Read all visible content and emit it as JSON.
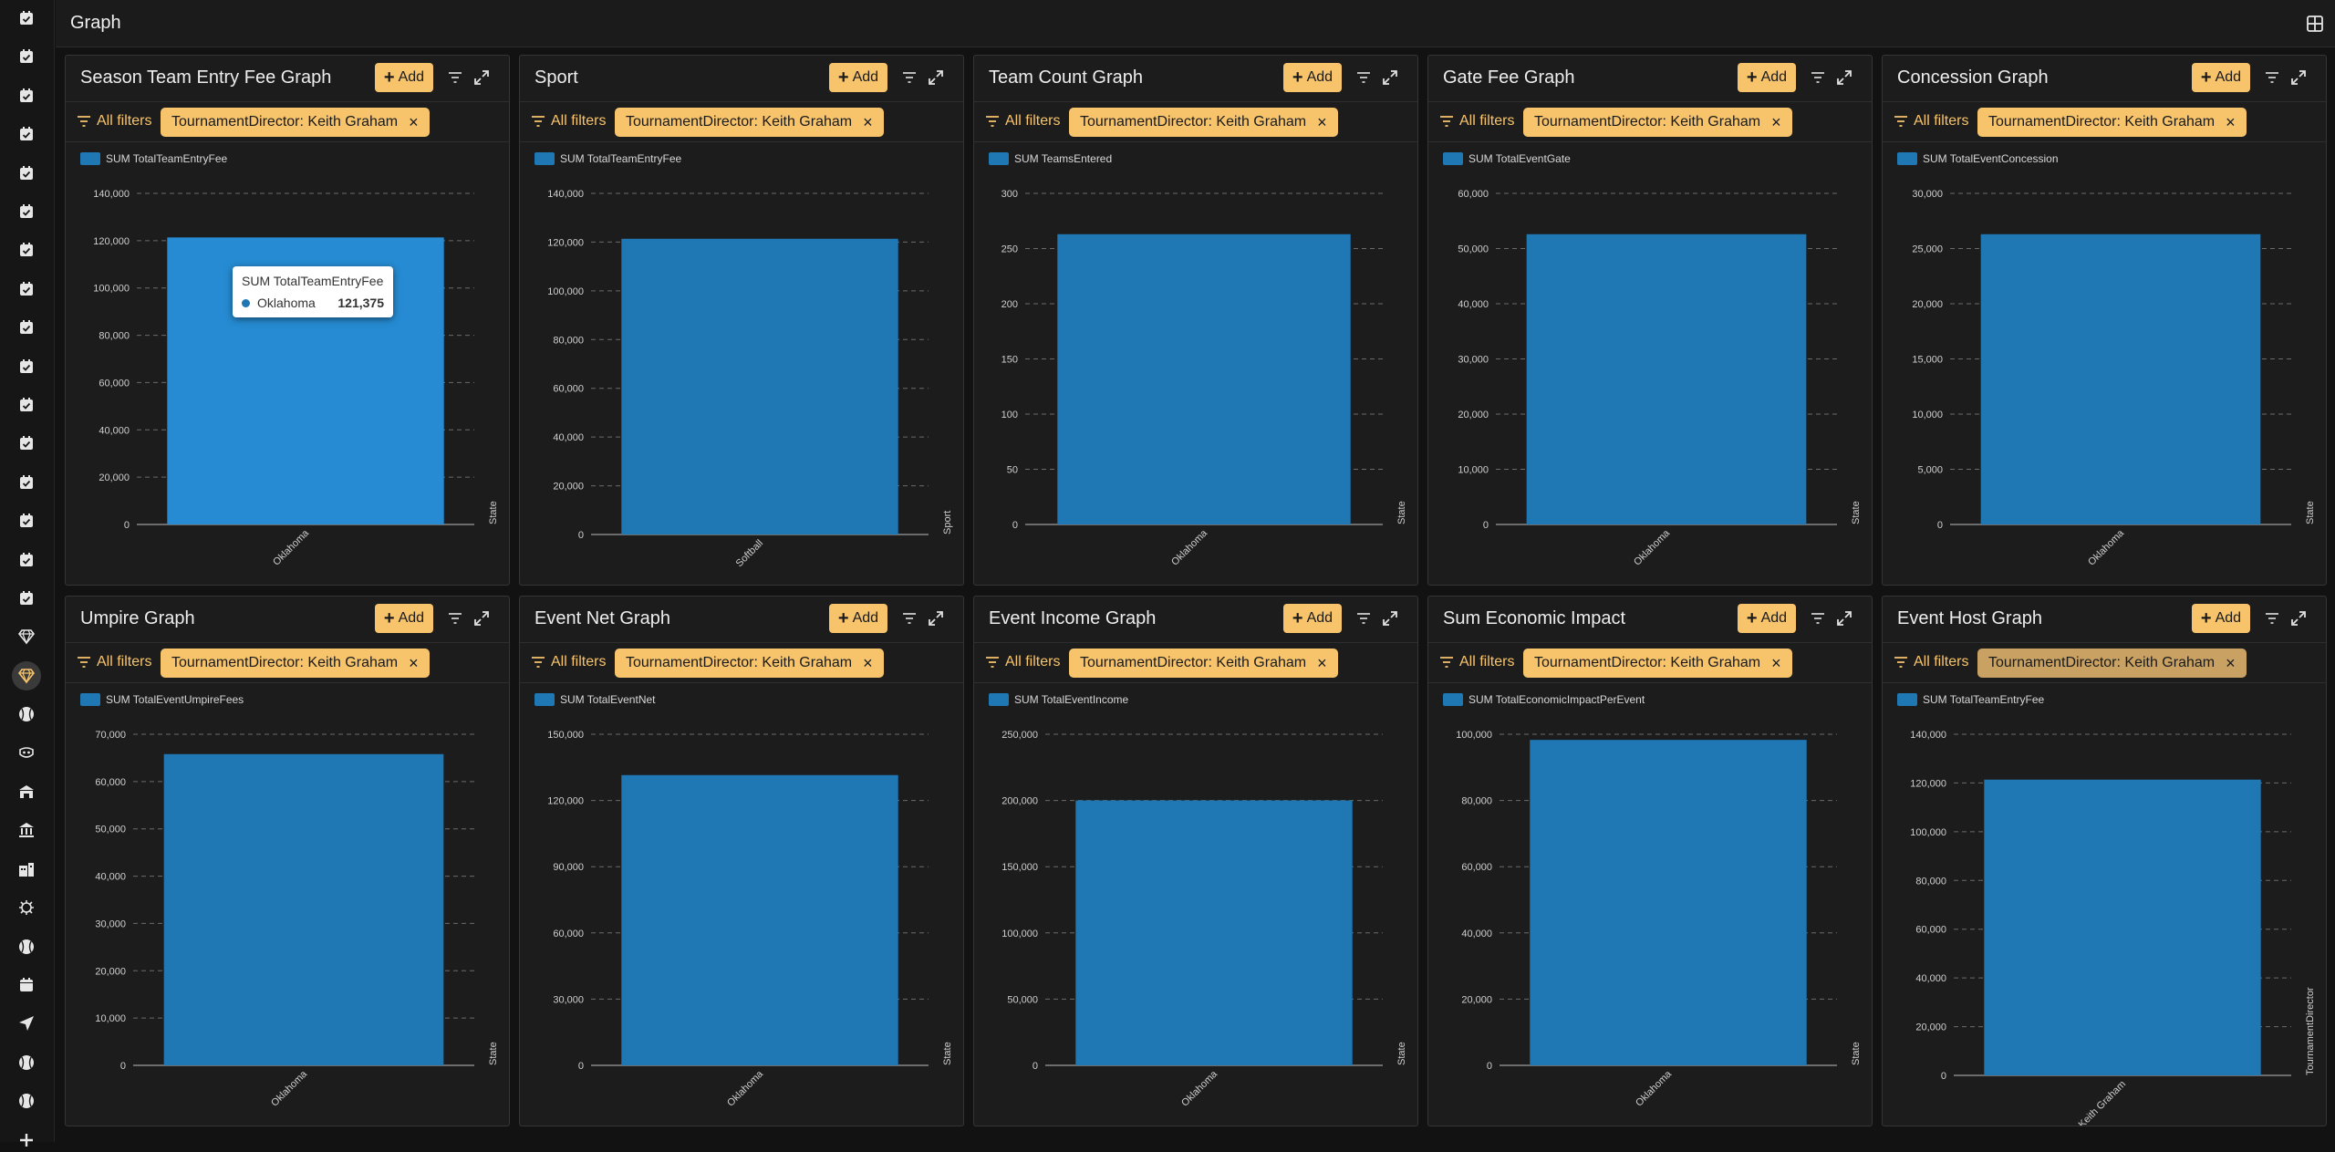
{
  "header": {
    "title": "Graph"
  },
  "sidebar": {
    "icons": [
      "calendar-check-icon",
      "calendar-check-icon",
      "calendar-check-icon",
      "calendar-check-icon",
      "calendar-check-icon",
      "calendar-check-icon",
      "calendar-check-icon",
      "calendar-check-icon",
      "calendar-check-icon",
      "calendar-check-icon",
      "calendar-check-icon",
      "calendar-check-icon",
      "calendar-check-icon",
      "calendar-check-icon",
      "calendar-check-icon",
      "calendar-check-icon",
      "diamond-icon",
      "diamond-icon",
      "ball-icon",
      "mask-icon",
      "building-icon",
      "bank-icon",
      "hospital-icon",
      "virus-icon",
      "ball-icon",
      "calendar-icon",
      "send-icon",
      "ball-icon",
      "ball-icon",
      "plus-icon"
    ],
    "active_index": 17
  },
  "common": {
    "add_label": "Add",
    "all_filters_label": "All filters"
  },
  "colors": {
    "accent": "#f7c46c",
    "bar": "#1f77b4",
    "bar_highlight": "#268bd2"
  },
  "panels": [
    {
      "title": "Season Team Entry Fee Graph",
      "filter_chip": "TournamentDirector: Keith Graham",
      "chart_data": {
        "type": "bar",
        "series": [
          {
            "name": "SUM TotalTeamEntryFee",
            "values": [
              121375
            ]
          }
        ],
        "categories": [
          "Oklahoma"
        ],
        "xlabel": "State",
        "ylim": [
          0,
          140000
        ],
        "yticks": [
          "0",
          "20,000",
          "40,000",
          "60,000",
          "80,000",
          "100,000",
          "120,000",
          "140,000"
        ]
      },
      "tooltip": {
        "title": "SUM TotalTeamEntryFee",
        "label": "Oklahoma",
        "value": "121,375"
      }
    },
    {
      "title": "Sport",
      "filter_chip": "TournamentDirector: Keith Graham",
      "chart_data": {
        "type": "bar",
        "series": [
          {
            "name": "SUM TotalTeamEntryFee",
            "values": [
              121375
            ]
          }
        ],
        "categories": [
          "Softball"
        ],
        "xlabel": "Sport",
        "ylim": [
          0,
          140000
        ],
        "yticks": [
          "0",
          "20,000",
          "40,000",
          "60,000",
          "80,000",
          "100,000",
          "120,000",
          "140,000"
        ]
      }
    },
    {
      "title": "Team Count Graph",
      "filter_chip": "TournamentDirector: Keith Graham",
      "chart_data": {
        "type": "bar",
        "series": [
          {
            "name": "SUM TeamsEntered",
            "values": [
              263
            ]
          }
        ],
        "categories": [
          "Oklahoma"
        ],
        "xlabel": "State",
        "ylim": [
          0,
          300
        ],
        "yticks": [
          "0",
          "50",
          "100",
          "150",
          "200",
          "250",
          "300"
        ]
      }
    },
    {
      "title": "Gate Fee Graph",
      "filter_chip": "TournamentDirector: Keith Graham",
      "chart_data": {
        "type": "bar",
        "series": [
          {
            "name": "SUM TotalEventGate",
            "values": [
              52600
            ]
          }
        ],
        "categories": [
          "Oklahoma"
        ],
        "xlabel": "State",
        "ylim": [
          0,
          60000
        ],
        "yticks": [
          "0",
          "10,000",
          "20,000",
          "30,000",
          "40,000",
          "50,000",
          "60,000"
        ]
      }
    },
    {
      "title": "Concession Graph",
      "filter_chip": "TournamentDirector: Keith Graham",
      "chart_data": {
        "type": "bar",
        "series": [
          {
            "name": "SUM TotalEventConcession",
            "values": [
              26300
            ]
          }
        ],
        "categories": [
          "Oklahoma"
        ],
        "xlabel": "State",
        "ylim": [
          0,
          30000
        ],
        "yticks": [
          "0",
          "5,000",
          "10,000",
          "15,000",
          "20,000",
          "25,000",
          "30,000"
        ]
      }
    },
    {
      "title": "Umpire Graph",
      "filter_chip": "TournamentDirector: Keith Graham",
      "chart_data": {
        "type": "bar",
        "series": [
          {
            "name": "SUM TotalEventUmpireFees",
            "values": [
              65800
            ]
          }
        ],
        "categories": [
          "Oklahoma"
        ],
        "xlabel": "State",
        "ylim": [
          0,
          70000
        ],
        "yticks": [
          "0",
          "10,000",
          "20,000",
          "30,000",
          "40,000",
          "50,000",
          "60,000",
          "70,000"
        ]
      }
    },
    {
      "title": "Event Net Graph",
      "filter_chip": "TournamentDirector: Keith Graham",
      "chart_data": {
        "type": "bar",
        "series": [
          {
            "name": "SUM TotalEventNet",
            "values": [
              131500
            ]
          }
        ],
        "categories": [
          "Oklahoma"
        ],
        "xlabel": "State",
        "ylim": [
          0,
          150000
        ],
        "yticks": [
          "0",
          "30,000",
          "60,000",
          "90,000",
          "120,000",
          "150,000"
        ]
      }
    },
    {
      "title": "Event Income Graph",
      "filter_chip": "TournamentDirector: Keith Graham",
      "chart_data": {
        "type": "bar",
        "series": [
          {
            "name": "SUM TotalEventIncome",
            "values": [
              200000
            ]
          }
        ],
        "categories": [
          "Oklahoma"
        ],
        "xlabel": "State",
        "ylim": [
          0,
          250000
        ],
        "yticks": [
          "0",
          "50,000",
          "100,000",
          "150,000",
          "200,000",
          "250,000"
        ]
      }
    },
    {
      "title": "Sum Economic Impact",
      "filter_chip": "TournamentDirector: Keith Graham",
      "chart_data": {
        "type": "bar",
        "series": [
          {
            "name": "SUM TotalEconomicImpactPerEvent",
            "values": [
              98300
            ]
          }
        ],
        "categories": [
          "Oklahoma"
        ],
        "xlabel": "State",
        "ylim": [
          0,
          100000
        ],
        "yticks": [
          "0",
          "20,000",
          "40,000",
          "60,000",
          "80,000",
          "100,000"
        ]
      }
    },
    {
      "title": "Event Host Graph",
      "filter_chip": "TournamentDirector: Keith Graham",
      "chip_dim": true,
      "chart_data": {
        "type": "bar",
        "series": [
          {
            "name": "SUM TotalTeamEntryFee",
            "values": [
              121375
            ]
          }
        ],
        "categories": [
          "Keith Graham"
        ],
        "xlabel": "TournamentDirector",
        "ylim": [
          0,
          140000
        ],
        "yticks": [
          "0",
          "20,000",
          "40,000",
          "60,000",
          "80,000",
          "100,000",
          "120,000",
          "140,000"
        ]
      }
    }
  ]
}
